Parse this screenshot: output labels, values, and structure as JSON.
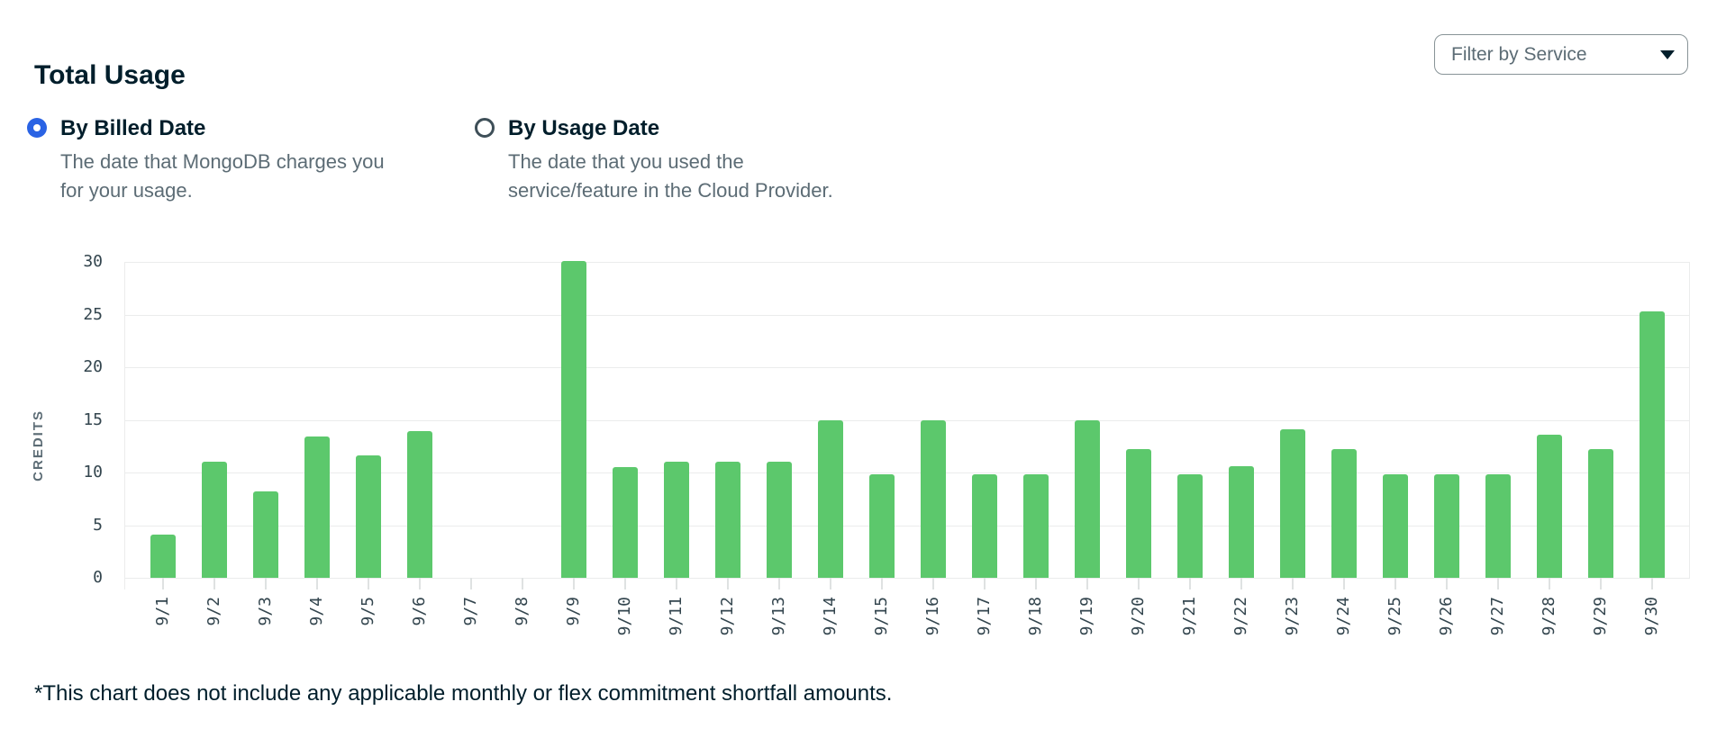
{
  "page": {
    "title": "Total Usage"
  },
  "filter": {
    "label": "Filter by Service",
    "icon": "chevron-down-icon"
  },
  "radio_options": [
    {
      "label": "By Billed Date",
      "description": "The date that MongoDB charges you for your usage.",
      "selected": true
    },
    {
      "label": "By Usage Date",
      "description": "The date that you used the service/feature in the Cloud Provider.",
      "selected": false
    }
  ],
  "footnote": "*This chart does not include any applicable monthly or flex commitment shortfall amounts.",
  "colors": {
    "bar": "#5cc86c",
    "accent_blue": "#2a63e4",
    "dark": "#001e2b",
    "muted": "#5c6c75",
    "ring": "#3e4f58",
    "border": "#889397",
    "grid": "#ebecec",
    "tick": "#dfe2e2",
    "axis_label": "#33454e"
  },
  "chart_data": {
    "type": "bar",
    "title": "Total Usage",
    "xlabel": "",
    "ylabel": "CREDITS",
    "ylim": [
      0,
      30
    ],
    "yticks": [
      0,
      5,
      10,
      15,
      20,
      25,
      30
    ],
    "grid": "horizontal",
    "legend": "none",
    "categories": [
      "9/1",
      "9/2",
      "9/3",
      "9/4",
      "9/5",
      "9/6",
      "9/7",
      "9/8",
      "9/9",
      "9/10",
      "9/11",
      "9/12",
      "9/13",
      "9/14",
      "9/15",
      "9/16",
      "9/17",
      "9/18",
      "9/19",
      "9/20",
      "9/21",
      "9/22",
      "9/23",
      "9/24",
      "9/25",
      "9/26",
      "9/27",
      "9/28",
      "9/29",
      "9/30"
    ],
    "values": [
      4.1,
      11,
      8.2,
      13.4,
      11.6,
      13.9,
      0,
      0,
      30.1,
      10.5,
      11,
      11,
      11,
      15,
      9.8,
      15,
      9.8,
      9.8,
      15,
      12.2,
      9.8,
      10.6,
      14.1,
      12.2,
      9.8,
      9.8,
      9.8,
      13.6,
      12.2,
      25.3
    ]
  }
}
